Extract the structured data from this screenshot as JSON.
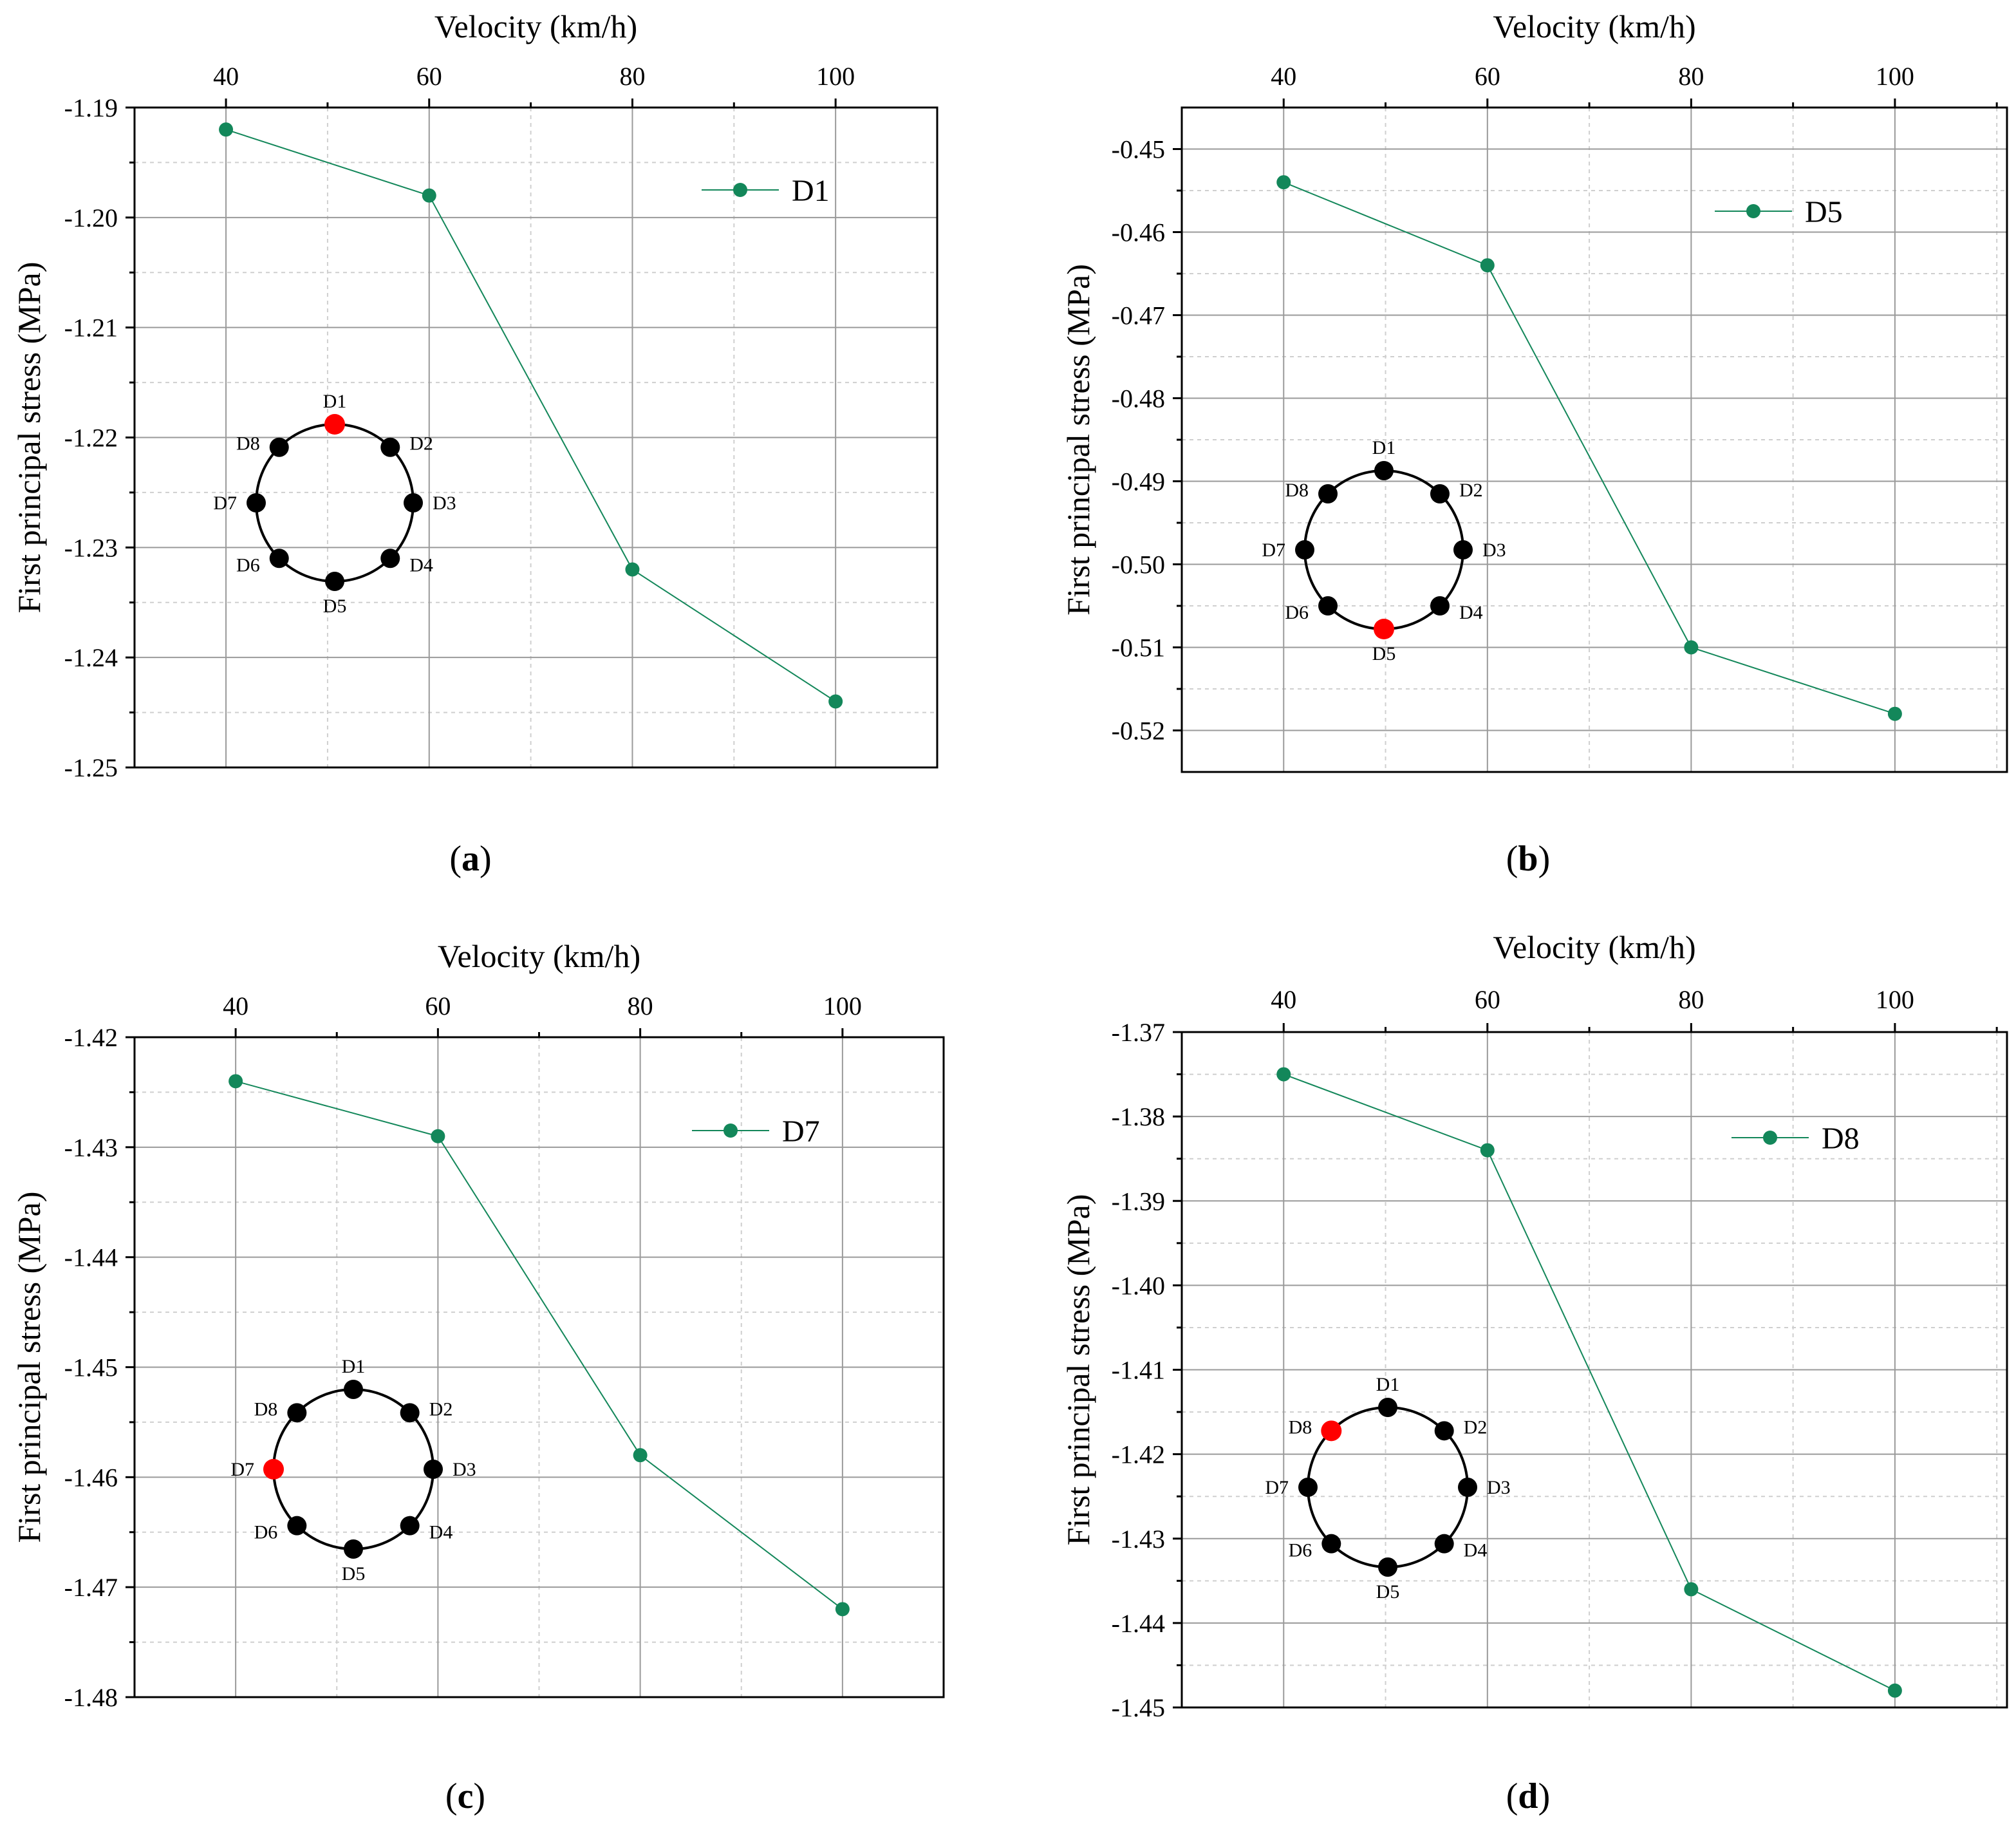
{
  "figure": {
    "panels": [
      {
        "id": "a",
        "label": "(a)"
      },
      {
        "id": "b",
        "label": "(b)"
      },
      {
        "id": "c",
        "label": "(c)"
      },
      {
        "id": "d",
        "label": "(d)"
      }
    ]
  },
  "colors": {
    "series": "#13875a",
    "highlight": "#ff0000",
    "node": "#000000",
    "grid_major": "#9a9a9a",
    "grid_minor": "#cfcfcf"
  },
  "chart_data": [
    {
      "type": "line",
      "panel": "a",
      "xlabel": "Velocity (km/h)",
      "ylabel": "First principal stress (MPa)",
      "x_axis_position": "top",
      "xlim": [
        31,
        110
      ],
      "ylim": [
        -1.25,
        -1.19
      ],
      "xticks": [
        "40",
        "60",
        "80",
        "100"
      ],
      "xtick_values": [
        40,
        60,
        80,
        100
      ],
      "yticks": [
        "-1.19",
        "-1.20",
        "-1.21",
        "-1.22",
        "-1.23",
        "-1.24",
        "-1.25"
      ],
      "ytick_values": [
        -1.19,
        -1.2,
        -1.21,
        -1.22,
        -1.23,
        -1.24,
        -1.25
      ],
      "grid": true,
      "legend_position": "top-right",
      "series": [
        {
          "name": "D1",
          "x": [
            40,
            60,
            80,
            100
          ],
          "values": [
            -1.192,
            -1.198,
            -1.232,
            -1.244
          ]
        }
      ],
      "inset": {
        "labels": [
          "D1",
          "D2",
          "D3",
          "D4",
          "D5",
          "D6",
          "D7",
          "D8"
        ],
        "highlight": "D1"
      }
    },
    {
      "type": "line",
      "panel": "b",
      "xlabel": "Velocity (km/h)",
      "ylabel": "First principal stress (MPa)",
      "x_axis_position": "top",
      "xlim": [
        30,
        111
      ],
      "ylim": [
        -0.525,
        -0.445
      ],
      "xticks": [
        "40",
        "60",
        "80",
        "100"
      ],
      "xtick_values": [
        40,
        60,
        80,
        100
      ],
      "yticks": [
        "-0.45",
        "-0.46",
        "-0.47",
        "-0.48",
        "-0.49",
        "-0.50",
        "-0.51",
        "-0.52"
      ],
      "ytick_values": [
        -0.45,
        -0.46,
        -0.47,
        -0.48,
        -0.49,
        -0.5,
        -0.51,
        -0.52
      ],
      "grid": true,
      "legend_position": "top-right",
      "series": [
        {
          "name": "D5",
          "x": [
            40,
            60,
            80,
            100
          ],
          "values": [
            -0.454,
            -0.464,
            -0.51,
            -0.518
          ]
        }
      ],
      "inset": {
        "labels": [
          "D1",
          "D2",
          "D3",
          "D4",
          "D5",
          "D6",
          "D7",
          "D8"
        ],
        "highlight": "D5"
      }
    },
    {
      "type": "line",
      "panel": "c",
      "xlabel": "Velocity (km/h)",
      "ylabel": "First principal stress (MPa)",
      "x_axis_position": "top",
      "xlim": [
        30,
        110
      ],
      "ylim": [
        -1.48,
        -1.42
      ],
      "xticks": [
        "40",
        "60",
        "80",
        "100"
      ],
      "xtick_values": [
        40,
        60,
        80,
        100
      ],
      "yticks": [
        "-1.42",
        "-1.43",
        "-1.44",
        "-1.45",
        "-1.46",
        "-1.47",
        "-1.48"
      ],
      "ytick_values": [
        -1.42,
        -1.43,
        -1.44,
        -1.45,
        -1.46,
        -1.47,
        -1.48
      ],
      "grid": true,
      "legend_position": "top-right",
      "series": [
        {
          "name": "D7",
          "x": [
            40,
            60,
            80,
            100
          ],
          "values": [
            -1.424,
            -1.429,
            -1.458,
            -1.472
          ]
        }
      ],
      "inset": {
        "labels": [
          "D1",
          "D2",
          "D3",
          "D4",
          "D5",
          "D6",
          "D7",
          "D8"
        ],
        "highlight": "D7"
      }
    },
    {
      "type": "line",
      "panel": "d",
      "xlabel": "Velocity (km/h)",
      "ylabel": "First principal stress (MPa)",
      "x_axis_position": "top",
      "xlim": [
        30,
        111
      ],
      "ylim": [
        -1.45,
        -1.37
      ],
      "xticks": [
        "40",
        "60",
        "80",
        "100"
      ],
      "xtick_values": [
        40,
        60,
        80,
        100
      ],
      "yticks": [
        "-1.37",
        "-1.38",
        "-1.39",
        "-1.40",
        "-1.41",
        "-1.42",
        "-1.43",
        "-1.44",
        "-1.45"
      ],
      "ytick_values": [
        -1.37,
        -1.38,
        -1.39,
        -1.4,
        -1.41,
        -1.42,
        -1.43,
        -1.44,
        -1.45
      ],
      "grid": true,
      "legend_position": "top-right",
      "series": [
        {
          "name": "D8",
          "x": [
            40,
            60,
            80,
            100
          ],
          "values": [
            -1.375,
            -1.384,
            -1.436,
            -1.448
          ]
        }
      ],
      "inset": {
        "labels": [
          "D1",
          "D2",
          "D3",
          "D4",
          "D5",
          "D6",
          "D7",
          "D8"
        ],
        "highlight": "D8"
      }
    }
  ]
}
